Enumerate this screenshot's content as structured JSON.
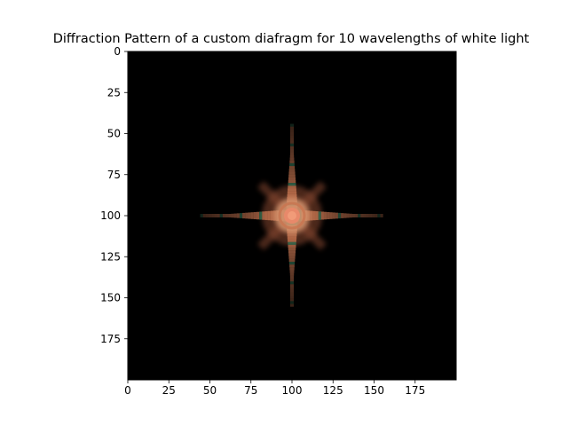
{
  "chart_data": {
    "type": "heatmap",
    "title": "Diffraction Pattern of a custom diafragm for 10 wavelengths of white light",
    "xlabel": "",
    "ylabel": "",
    "image_size": [
      200,
      200
    ],
    "xlim": [
      0,
      200
    ],
    "ylim": [
      200,
      0
    ],
    "x_ticks": [
      0,
      25,
      50,
      75,
      100,
      125,
      150,
      175
    ],
    "y_ticks": [
      0,
      25,
      50,
      75,
      100,
      125,
      150,
      175
    ],
    "background_color": "#000000",
    "pattern": {
      "center": [
        100,
        100
      ],
      "central_disk_color": "#e8896a",
      "core_glow_color": "#d6946e",
      "spike_color": "#c97752",
      "diagonal_color": "#8a4a30",
      "fringe_tint_color": "#3a7a5a",
      "horizontal_spike_extent": [
        40,
        160
      ],
      "vertical_spike_extent": [
        40,
        160
      ]
    }
  }
}
